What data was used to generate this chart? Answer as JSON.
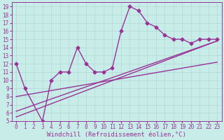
{
  "xlabel": "Windchill (Refroidissement éolien,°C)",
  "bg_color": "#c8ede8",
  "grid_color": "#b0d8d4",
  "line_color": "#993399",
  "xlim": [
    -0.5,
    23.5
  ],
  "ylim": [
    5,
    19.5
  ],
  "xticks": [
    0,
    1,
    2,
    3,
    4,
    5,
    6,
    7,
    8,
    9,
    10,
    11,
    12,
    13,
    14,
    15,
    16,
    17,
    18,
    19,
    20,
    21,
    22,
    23
  ],
  "yticks": [
    5,
    6,
    7,
    8,
    9,
    10,
    11,
    12,
    13,
    14,
    15,
    16,
    17,
    18,
    19
  ],
  "series1_x": [
    0,
    1,
    3,
    4,
    5,
    6,
    7,
    8,
    9,
    10,
    11,
    12,
    13,
    14,
    15,
    16,
    17,
    18,
    19,
    20,
    21,
    22,
    23
  ],
  "series1_y": [
    12,
    9,
    5,
    10,
    11,
    11,
    14,
    12,
    11,
    11,
    11.5,
    16,
    19,
    18.5,
    17,
    16.5,
    15.5,
    15,
    15,
    14.5,
    15,
    15,
    15
  ],
  "series2_x": [
    0,
    23
  ],
  "series2_y": [
    5.5,
    14.8
  ],
  "series3_x": [
    0,
    23
  ],
  "series3_y": [
    6.2,
    14.8
  ],
  "series4_x": [
    0,
    23
  ],
  "series4_y": [
    8.0,
    12.2
  ],
  "markersize": 2.5,
  "linewidth": 1.0,
  "xlabel_fontsize": 6.5,
  "tick_fontsize": 5.5
}
